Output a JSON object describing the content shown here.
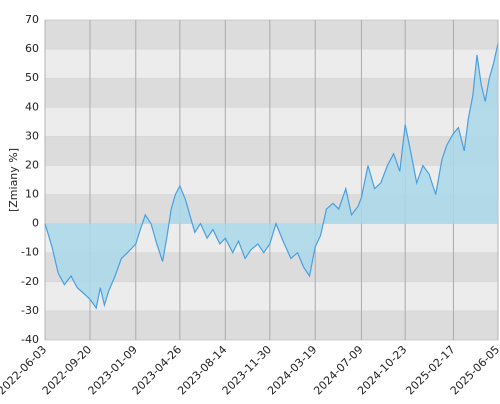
{
  "chart_data": {
    "type": "area",
    "y_label": "[Zmiany %]",
    "ylim": [
      -40,
      70
    ],
    "yticks": [
      -40,
      -30,
      -20,
      -10,
      0,
      10,
      20,
      30,
      40,
      50,
      60,
      70
    ],
    "xlim": [
      "2022-06-03",
      "2025-06-05"
    ],
    "xticks": [
      "2022-06-03",
      "2022-09-20",
      "2023-01-09",
      "2023-04-26",
      "2023-08-14",
      "2023-11-30",
      "2024-03-19",
      "2024-07-09",
      "2024-10-23",
      "2025-02-17",
      "2025-06-05"
    ],
    "grid": true,
    "series": [
      {
        "color": "#4a9fe0",
        "fill": "#a9d8ea",
        "x": [
          "2022-06-03",
          "2022-06-20",
          "2022-07-05",
          "2022-07-20",
          "2022-08-05",
          "2022-08-20",
          "2022-09-05",
          "2022-09-20",
          "2022-10-05",
          "2022-10-15",
          "2022-10-25",
          "2022-11-05",
          "2022-11-20",
          "2022-12-05",
          "2022-12-20",
          "2023-01-09",
          "2023-01-20",
          "2023-02-01",
          "2023-02-15",
          "2023-03-01",
          "2023-03-15",
          "2023-03-25",
          "2023-04-05",
          "2023-04-15",
          "2023-04-26",
          "2023-05-10",
          "2023-05-20",
          "2023-06-01",
          "2023-06-15",
          "2023-07-01",
          "2023-07-15",
          "2023-08-01",
          "2023-08-14",
          "2023-09-01",
          "2023-09-15",
          "2023-10-01",
          "2023-10-15",
          "2023-11-01",
          "2023-11-15",
          "2023-11-30",
          "2023-12-15",
          "2024-01-01",
          "2024-01-20",
          "2024-02-05",
          "2024-02-20",
          "2024-03-05",
          "2024-03-19",
          "2024-04-01",
          "2024-04-15",
          "2024-05-01",
          "2024-05-15",
          "2024-06-01",
          "2024-06-15",
          "2024-07-01",
          "2024-07-09",
          "2024-07-25",
          "2024-08-10",
          "2024-08-25",
          "2024-09-10",
          "2024-09-25",
          "2024-10-10",
          "2024-10-23",
          "2024-11-05",
          "2024-11-20",
          "2024-12-05",
          "2024-12-20",
          "2025-01-05",
          "2025-01-20",
          "2025-02-01",
          "2025-02-17",
          "2025-03-01",
          "2025-03-15",
          "2025-03-25",
          "2025-04-05",
          "2025-04-15",
          "2025-04-25",
          "2025-05-05",
          "2025-05-15",
          "2025-05-25",
          "2025-06-05"
        ],
        "values": [
          0,
          -8,
          -17,
          -21,
          -18,
          -22,
          -24,
          -26,
          -29,
          -22,
          -28,
          -23,
          -18,
          -12,
          -10,
          -7,
          -2,
          3,
          0,
          -7,
          -13,
          -5,
          5,
          10,
          13,
          8,
          3,
          -3,
          0,
          -5,
          -2,
          -7,
          -5,
          -10,
          -6,
          -12,
          -9,
          -7,
          -10,
          -7,
          0,
          -6,
          -12,
          -10,
          -15,
          -18,
          -8,
          -4,
          5,
          7,
          5,
          12,
          3,
          6,
          9,
          20,
          12,
          14,
          20,
          24,
          18,
          34,
          25,
          14,
          20,
          17,
          10,
          22,
          27,
          31,
          33,
          25,
          36,
          44,
          58,
          48,
          42,
          50,
          55,
          62
        ]
      }
    ]
  }
}
